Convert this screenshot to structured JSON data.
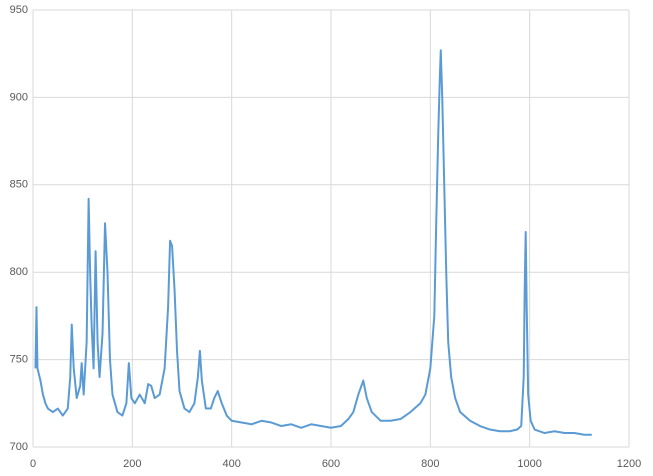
{
  "chart_data": {
    "type": "line",
    "x": [
      5,
      7,
      9,
      15,
      20,
      25,
      30,
      40,
      50,
      60,
      70,
      75,
      78,
      82,
      88,
      95,
      98,
      102,
      108,
      112,
      115,
      118,
      122,
      126,
      130,
      134,
      140,
      145,
      150,
      155,
      160,
      170,
      180,
      188,
      193,
      198,
      205,
      215,
      225,
      232,
      238,
      245,
      255,
      265,
      272,
      276,
      280,
      285,
      290,
      295,
      305,
      315,
      325,
      332,
      336,
      340,
      348,
      358,
      365,
      372,
      380,
      390,
      400,
      420,
      440,
      460,
      480,
      500,
      520,
      540,
      560,
      580,
      600,
      620,
      635,
      645,
      655,
      665,
      672,
      682,
      700,
      720,
      740,
      760,
      780,
      790,
      800,
      808,
      812,
      816,
      819,
      821,
      824,
      828,
      832,
      836,
      842,
      850,
      860,
      880,
      900,
      920,
      940,
      960,
      975,
      983,
      988,
      990,
      992,
      994,
      997,
      1002,
      1010,
      1030,
      1050,
      1070,
      1090,
      1110,
      1125
    ],
    "values": [
      745,
      780,
      745,
      738,
      730,
      725,
      722,
      720,
      722,
      718,
      722,
      740,
      770,
      745,
      728,
      735,
      748,
      730,
      760,
      842,
      800,
      770,
      745,
      812,
      760,
      740,
      765,
      828,
      800,
      750,
      730,
      720,
      718,
      725,
      748,
      728,
      725,
      730,
      725,
      736,
      735,
      728,
      730,
      745,
      780,
      818,
      815,
      790,
      755,
      732,
      722,
      720,
      725,
      740,
      755,
      738,
      722,
      722,
      728,
      732,
      725,
      718,
      715,
      714,
      713,
      715,
      714,
      712,
      713,
      711,
      713,
      712,
      711,
      712,
      716,
      720,
      730,
      738,
      728,
      720,
      715,
      715,
      716,
      720,
      725,
      730,
      745,
      775,
      830,
      880,
      910,
      927,
      900,
      850,
      800,
      760,
      740,
      728,
      720,
      715,
      712,
      710,
      709,
      709,
      710,
      712,
      740,
      790,
      823,
      780,
      730,
      715,
      710,
      708,
      709,
      708,
      708,
      707,
      707
    ],
    "color": "#5b9bd5",
    "xlim": [
      0,
      1200
    ],
    "xticks": [
      0,
      200,
      400,
      600,
      800,
      1000,
      1200
    ],
    "ylim": [
      700,
      950
    ],
    "yticks": [
      700,
      750,
      800,
      850,
      900,
      950
    ],
    "grid": true
  }
}
